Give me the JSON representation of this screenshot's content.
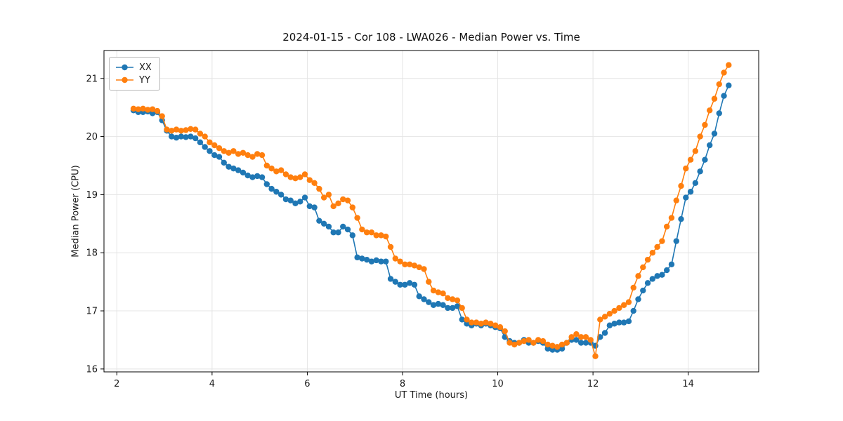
{
  "chart_data": {
    "type": "line",
    "title": "2024-01-15 - Cor 108 - LWA026 - Median Power vs. Time",
    "xlabel": "UT Time (hours)",
    "ylabel": "Median Power (CPU)",
    "xlim": [
      1.73,
      15.48
    ],
    "ylim": [
      15.95,
      21.48
    ],
    "x_ticks": [
      2,
      4,
      6,
      8,
      10,
      12,
      14
    ],
    "y_ticks": [
      16,
      17,
      18,
      19,
      20,
      21
    ],
    "grid": true,
    "legend_position": "upper left",
    "marker": "circle",
    "x": [
      2.35,
      2.45,
      2.55,
      2.65,
      2.75,
      2.85,
      2.95,
      3.05,
      3.15,
      3.25,
      3.35,
      3.45,
      3.55,
      3.65,
      3.75,
      3.85,
      3.95,
      4.05,
      4.15,
      4.25,
      4.35,
      4.45,
      4.55,
      4.65,
      4.75,
      4.85,
      4.95,
      5.05,
      5.15,
      5.25,
      5.35,
      5.45,
      5.55,
      5.65,
      5.75,
      5.85,
      5.95,
      6.05,
      6.15,
      6.25,
      6.35,
      6.45,
      6.55,
      6.65,
      6.75,
      6.85,
      6.95,
      7.05,
      7.15,
      7.25,
      7.35,
      7.45,
      7.55,
      7.65,
      7.75,
      7.85,
      7.95,
      8.05,
      8.15,
      8.25,
      8.35,
      8.45,
      8.55,
      8.65,
      8.75,
      8.85,
      8.95,
      9.05,
      9.15,
      9.25,
      9.35,
      9.45,
      9.55,
      9.65,
      9.75,
      9.85,
      9.95,
      10.05,
      10.15,
      10.25,
      10.35,
      10.45,
      10.55,
      10.65,
      10.75,
      10.85,
      10.95,
      11.05,
      11.15,
      11.25,
      11.35,
      11.45,
      11.55,
      11.65,
      11.75,
      11.85,
      11.95,
      12.05,
      12.15,
      12.25,
      12.35,
      12.45,
      12.55,
      12.65,
      12.75,
      12.85,
      12.95,
      13.05,
      13.15,
      13.25,
      13.35,
      13.45,
      13.55,
      13.65,
      13.75,
      13.85,
      13.95,
      14.05,
      14.15,
      14.25,
      14.35,
      14.45,
      14.55,
      14.65,
      14.75,
      14.85
    ],
    "series": [
      {
        "name": "XX",
        "color": "#1f77b4",
        "values": [
          20.45,
          20.42,
          20.42,
          20.43,
          20.4,
          20.42,
          20.28,
          20.1,
          20.0,
          19.98,
          20.0,
          19.99,
          20.0,
          19.97,
          19.9,
          19.82,
          19.75,
          19.68,
          19.65,
          19.55,
          19.48,
          19.45,
          19.42,
          19.38,
          19.33,
          19.3,
          19.32,
          19.3,
          19.18,
          19.1,
          19.05,
          19.0,
          18.92,
          18.9,
          18.85,
          18.88,
          18.95,
          18.8,
          18.78,
          18.55,
          18.5,
          18.45,
          18.35,
          18.35,
          18.45,
          18.4,
          18.3,
          17.92,
          17.9,
          17.88,
          17.85,
          17.87,
          17.85,
          17.85,
          17.55,
          17.5,
          17.45,
          17.45,
          17.48,
          17.45,
          17.25,
          17.2,
          17.15,
          17.1,
          17.12,
          17.1,
          17.05,
          17.05,
          17.08,
          16.85,
          16.78,
          16.75,
          16.78,
          16.75,
          16.78,
          16.75,
          16.72,
          16.7,
          16.55,
          16.48,
          16.45,
          16.45,
          16.5,
          16.45,
          16.45,
          16.48,
          16.45,
          16.35,
          16.33,
          16.33,
          16.35,
          16.45,
          16.5,
          16.5,
          16.45,
          16.45,
          16.45,
          16.4,
          16.55,
          16.62,
          16.75,
          16.78,
          16.8,
          16.8,
          16.82,
          17.0,
          17.2,
          17.35,
          17.48,
          17.55,
          17.6,
          17.62,
          17.7,
          17.8,
          18.2,
          18.58,
          18.95,
          19.05,
          19.2,
          19.4,
          19.6,
          19.85,
          20.05,
          20.4,
          20.7,
          20.88
        ]
      },
      {
        "name": "YY",
        "color": "#ff7f0e",
        "values": [
          20.48,
          20.47,
          20.48,
          20.46,
          20.47,
          20.44,
          20.35,
          20.12,
          20.1,
          20.12,
          20.1,
          20.11,
          20.13,
          20.12,
          20.05,
          20.0,
          19.9,
          19.85,
          19.8,
          19.75,
          19.72,
          19.75,
          19.7,
          19.72,
          19.68,
          19.65,
          19.7,
          19.68,
          19.5,
          19.45,
          19.4,
          19.42,
          19.35,
          19.3,
          19.28,
          19.3,
          19.35,
          19.25,
          19.2,
          19.1,
          18.95,
          19.0,
          18.8,
          18.85,
          18.92,
          18.9,
          18.78,
          18.6,
          18.4,
          18.35,
          18.35,
          18.3,
          18.3,
          18.28,
          18.1,
          17.9,
          17.85,
          17.8,
          17.8,
          17.78,
          17.75,
          17.72,
          17.5,
          17.35,
          17.32,
          17.3,
          17.22,
          17.2,
          17.18,
          17.05,
          16.85,
          16.8,
          16.8,
          16.78,
          16.8,
          16.78,
          16.75,
          16.72,
          16.65,
          16.45,
          16.42,
          16.45,
          16.48,
          16.5,
          16.45,
          16.5,
          16.48,
          16.42,
          16.4,
          16.38,
          16.42,
          16.45,
          16.55,
          16.6,
          16.55,
          16.55,
          16.5,
          16.22,
          16.85,
          16.9,
          16.95,
          17.0,
          17.05,
          17.1,
          17.15,
          17.4,
          17.6,
          17.75,
          17.88,
          18.0,
          18.1,
          18.2,
          18.45,
          18.6,
          18.9,
          19.15,
          19.45,
          19.6,
          19.75,
          20.0,
          20.2,
          20.45,
          20.65,
          20.9,
          21.1,
          21.23
        ]
      }
    ]
  }
}
